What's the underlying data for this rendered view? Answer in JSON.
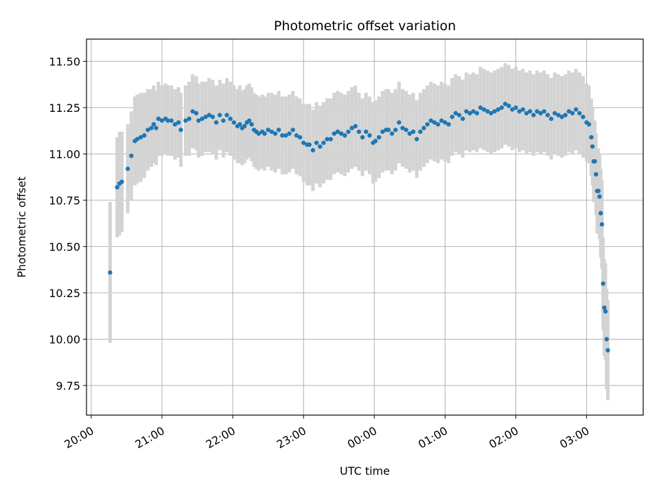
{
  "chart_data": {
    "type": "scatter",
    "title": "Photometric offset variation",
    "xlabel": "UTC time",
    "ylabel": "Photometric offset",
    "grid": true,
    "x_unit": "UTC time HH:MM (times after midnight are on the following day)",
    "xlim": [
      "19:56",
      "03:48"
    ],
    "ylim": [
      9.59,
      11.62
    ],
    "x_ticks": [
      "20:00",
      "21:00",
      "22:00",
      "23:00",
      "00:00",
      "01:00",
      "02:00",
      "03:00"
    ],
    "y_ticks": [
      "9.75",
      "10.00",
      "10.25",
      "10.50",
      "10.75",
      "11.00",
      "11.25",
      "11.50"
    ],
    "colors": {
      "marker": "#1f77b4",
      "errorbar": "#d3d3d3",
      "grid": "#b0b0b0"
    },
    "series": [
      {
        "marker": "point",
        "errorbars": "vertical, grey",
        "points": [
          [
            "20:16",
            10.36,
            0.38
          ],
          [
            "20:22",
            10.82,
            0.27
          ],
          [
            "20:24",
            10.84,
            0.28
          ],
          [
            "20:26",
            10.85,
            0.27
          ],
          [
            "20:31",
            10.92,
            0.24
          ],
          [
            "20:34",
            10.99,
            0.24
          ],
          [
            "20:37",
            11.07,
            0.24
          ],
          [
            "20:39",
            11.08,
            0.24
          ],
          [
            "20:42",
            11.09,
            0.24
          ],
          [
            "20:45",
            11.1,
            0.23
          ],
          [
            "20:48",
            11.13,
            0.22
          ],
          [
            "20:51",
            11.14,
            0.21
          ],
          [
            "20:53",
            11.16,
            0.21
          ],
          [
            "20:55",
            11.14,
            0.2
          ],
          [
            "20:57",
            11.19,
            0.2
          ],
          [
            "21:00",
            11.18,
            0.19
          ],
          [
            "21:03",
            11.19,
            0.19
          ],
          [
            "21:05",
            11.18,
            0.19
          ],
          [
            "21:08",
            11.18,
            0.19
          ],
          [
            "21:11",
            11.16,
            0.19
          ],
          [
            "21:14",
            11.17,
            0.19
          ],
          [
            "21:16",
            11.13,
            0.2
          ],
          [
            "21:20",
            11.18,
            0.19
          ],
          [
            "21:23",
            11.19,
            0.2
          ],
          [
            "21:26",
            11.23,
            0.2
          ],
          [
            "21:29",
            11.22,
            0.2
          ],
          [
            "21:31",
            11.18,
            0.2
          ],
          [
            "21:34",
            11.19,
            0.2
          ],
          [
            "21:37",
            11.2,
            0.19
          ],
          [
            "21:40",
            11.21,
            0.2
          ],
          [
            "21:43",
            11.2,
            0.2
          ],
          [
            "21:46",
            11.17,
            0.2
          ],
          [
            "21:49",
            11.21,
            0.19
          ],
          [
            "21:52",
            11.18,
            0.2
          ],
          [
            "21:55",
            11.21,
            0.2
          ],
          [
            "21:58",
            11.19,
            0.2
          ],
          [
            "22:01",
            11.17,
            0.2
          ],
          [
            "22:04",
            11.15,
            0.2
          ],
          [
            "22:06",
            11.16,
            0.21
          ],
          [
            "22:08",
            11.14,
            0.2
          ],
          [
            "22:10",
            11.15,
            0.2
          ],
          [
            "22:12",
            11.17,
            0.2
          ],
          [
            "22:14",
            11.18,
            0.2
          ],
          [
            "22:16",
            11.16,
            0.2
          ],
          [
            "22:18",
            11.13,
            0.2
          ],
          [
            "22:20",
            11.12,
            0.2
          ],
          [
            "22:22",
            11.11,
            0.2
          ],
          [
            "22:25",
            11.12,
            0.2
          ],
          [
            "22:27",
            11.11,
            0.2
          ],
          [
            "22:30",
            11.13,
            0.2
          ],
          [
            "22:33",
            11.12,
            0.21
          ],
          [
            "22:36",
            11.11,
            0.21
          ],
          [
            "22:39",
            11.13,
            0.21
          ],
          [
            "22:42",
            11.1,
            0.21
          ],
          [
            "22:45",
            11.1,
            0.21
          ],
          [
            "22:48",
            11.11,
            0.21
          ],
          [
            "22:51",
            11.13,
            0.21
          ],
          [
            "22:54",
            11.1,
            0.21
          ],
          [
            "22:57",
            11.09,
            0.21
          ],
          [
            "23:00",
            11.06,
            0.21
          ],
          [
            "23:03",
            11.05,
            0.22
          ],
          [
            "23:05",
            11.05,
            0.22
          ],
          [
            "23:08",
            11.02,
            0.22
          ],
          [
            "23:11",
            11.06,
            0.22
          ],
          [
            "23:14",
            11.04,
            0.22
          ],
          [
            "23:17",
            11.06,
            0.22
          ],
          [
            "23:20",
            11.08,
            0.22
          ],
          [
            "23:23",
            11.08,
            0.22
          ],
          [
            "23:26",
            11.11,
            0.22
          ],
          [
            "23:29",
            11.12,
            0.22
          ],
          [
            "23:32",
            11.11,
            0.22
          ],
          [
            "23:35",
            11.1,
            0.22
          ],
          [
            "23:38",
            11.12,
            0.22
          ],
          [
            "23:41",
            11.14,
            0.22
          ],
          [
            "23:44",
            11.15,
            0.22
          ],
          [
            "23:47",
            11.12,
            0.21
          ],
          [
            "23:50",
            11.09,
            0.21
          ],
          [
            "23:53",
            11.12,
            0.21
          ],
          [
            "23:56",
            11.1,
            0.21
          ],
          [
            "23:59",
            11.06,
            0.22
          ],
          [
            "00:01",
            11.07,
            0.22
          ],
          [
            "00:04",
            11.09,
            0.22
          ],
          [
            "00:07",
            11.12,
            0.22
          ],
          [
            "00:10",
            11.13,
            0.22
          ],
          [
            "00:12",
            11.13,
            0.22
          ],
          [
            "00:15",
            11.11,
            0.22
          ],
          [
            "00:18",
            11.13,
            0.22
          ],
          [
            "00:21",
            11.17,
            0.22
          ],
          [
            "00:24",
            11.14,
            0.21
          ],
          [
            "00:27",
            11.13,
            0.21
          ],
          [
            "00:30",
            11.11,
            0.21
          ],
          [
            "00:33",
            11.12,
            0.21
          ],
          [
            "00:36",
            11.08,
            0.21
          ],
          [
            "00:39",
            11.12,
            0.21
          ],
          [
            "00:42",
            11.14,
            0.21
          ],
          [
            "00:45",
            11.16,
            0.21
          ],
          [
            "00:48",
            11.18,
            0.21
          ],
          [
            "00:51",
            11.17,
            0.21
          ],
          [
            "00:54",
            11.16,
            0.21
          ],
          [
            "00:57",
            11.18,
            0.21
          ],
          [
            "01:00",
            11.17,
            0.21
          ],
          [
            "01:03",
            11.16,
            0.21
          ],
          [
            "01:06",
            11.2,
            0.21
          ],
          [
            "01:09",
            11.22,
            0.21
          ],
          [
            "01:12",
            11.21,
            0.21
          ],
          [
            "01:15",
            11.19,
            0.21
          ],
          [
            "01:18",
            11.23,
            0.21
          ],
          [
            "01:21",
            11.22,
            0.21
          ],
          [
            "01:24",
            11.23,
            0.21
          ],
          [
            "01:27",
            11.22,
            0.21
          ],
          [
            "01:30",
            11.25,
            0.22
          ],
          [
            "01:33",
            11.24,
            0.22
          ],
          [
            "01:36",
            11.23,
            0.22
          ],
          [
            "01:39",
            11.22,
            0.22
          ],
          [
            "01:42",
            11.23,
            0.22
          ],
          [
            "01:45",
            11.24,
            0.22
          ],
          [
            "01:48",
            11.25,
            0.22
          ],
          [
            "01:51",
            11.27,
            0.22
          ],
          [
            "01:54",
            11.26,
            0.22
          ],
          [
            "01:57",
            11.24,
            0.22
          ],
          [
            "02:00",
            11.25,
            0.22
          ],
          [
            "02:03",
            11.23,
            0.22
          ],
          [
            "02:06",
            11.24,
            0.22
          ],
          [
            "02:09",
            11.22,
            0.22
          ],
          [
            "02:12",
            11.23,
            0.22
          ],
          [
            "02:15",
            11.21,
            0.22
          ],
          [
            "02:18",
            11.23,
            0.22
          ],
          [
            "02:21",
            11.22,
            0.22
          ],
          [
            "02:24",
            11.23,
            0.22
          ],
          [
            "02:27",
            11.21,
            0.22
          ],
          [
            "02:30",
            11.19,
            0.22
          ],
          [
            "02:33",
            11.22,
            0.22
          ],
          [
            "02:36",
            11.21,
            0.22
          ],
          [
            "02:39",
            11.2,
            0.22
          ],
          [
            "02:42",
            11.21,
            0.22
          ],
          [
            "02:45",
            11.23,
            0.22
          ],
          [
            "02:48",
            11.22,
            0.22
          ],
          [
            "02:51",
            11.24,
            0.22
          ],
          [
            "02:54",
            11.22,
            0.22
          ],
          [
            "02:57",
            11.2,
            0.22
          ],
          [
            "03:00",
            11.17,
            0.21
          ],
          [
            "03:02",
            11.16,
            0.21
          ],
          [
            "03:04",
            11.09,
            0.21
          ],
          [
            "03:05",
            11.04,
            0.21
          ],
          [
            "03:06",
            10.96,
            0.22
          ],
          [
            "03:07",
            10.96,
            0.22
          ],
          [
            "03:08",
            10.89,
            0.22
          ],
          [
            "03:09",
            10.8,
            0.23
          ],
          [
            "03:10",
            10.8,
            0.23
          ],
          [
            "03:11",
            10.77,
            0.23
          ],
          [
            "03:12",
            10.68,
            0.24
          ],
          [
            "03:13",
            10.62,
            0.24
          ],
          [
            "03:14",
            10.3,
            0.25
          ],
          [
            "03:15",
            10.17,
            0.26
          ],
          [
            "03:16",
            10.15,
            0.26
          ],
          [
            "03:17",
            10.0,
            0.27
          ],
          [
            "03:18",
            9.94,
            0.27
          ]
        ]
      }
    ]
  }
}
